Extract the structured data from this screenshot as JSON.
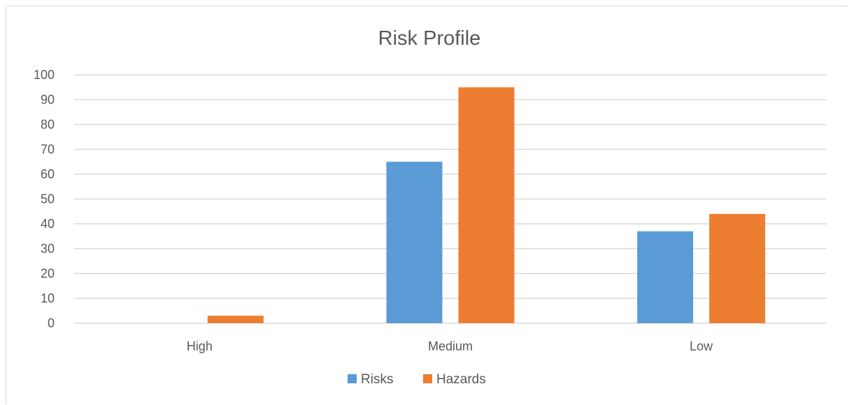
{
  "chart_data": {
    "type": "bar",
    "title": "Risk Profile",
    "categories": [
      "High",
      "Medium",
      "Low"
    ],
    "series": [
      {
        "name": "Risks",
        "color": "#5B9BD5",
        "values": [
          0,
          65,
          37
        ]
      },
      {
        "name": "Hazards",
        "color": "#ED7D31",
        "values": [
          3,
          95,
          44
        ]
      }
    ],
    "ylim": [
      0,
      100
    ],
    "yticks": [
      "0",
      "10",
      "20",
      "30",
      "40",
      "50",
      "60",
      "70",
      "80",
      "90",
      "100"
    ],
    "grid": true,
    "legend": "bottom-center",
    "colors": {
      "gridline": "#d9d9d9",
      "text": "#595959"
    }
  }
}
